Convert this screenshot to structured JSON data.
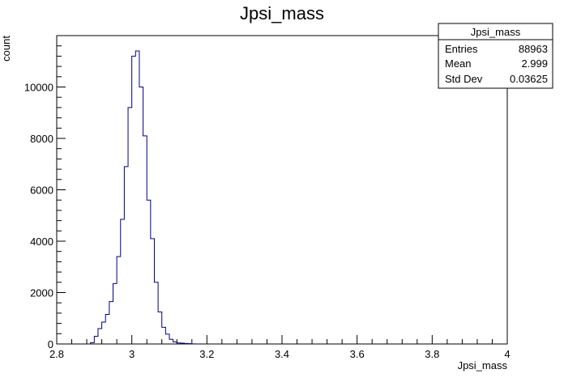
{
  "chart_data": {
    "type": "histogram",
    "title": "Jpsi_mass",
    "xlabel": "Jpsi_mass",
    "ylabel": "count",
    "xlim": [
      2.8,
      4.0
    ],
    "ylim": [
      0,
      12000
    ],
    "x_ticks": [
      "2.8",
      "3",
      "3.2",
      "3.4",
      "3.6",
      "3.8",
      "4"
    ],
    "y_ticks": [
      "0",
      "2000",
      "4000",
      "6000",
      "8000",
      "10000"
    ],
    "bin_width": 0.01,
    "bins_x_low": [
      2.89,
      2.9,
      2.91,
      2.92,
      2.93,
      2.94,
      2.95,
      2.96,
      2.97,
      2.98,
      2.99,
      3.0,
      3.01,
      3.02,
      3.03,
      3.04,
      3.05,
      3.06,
      3.07,
      3.08,
      3.09,
      3.1,
      3.11,
      3.12,
      3.13,
      3.14,
      3.15,
      3.16
    ],
    "bins_count": [
      50,
      300,
      600,
      850,
      1150,
      1650,
      2350,
      3400,
      4850,
      6900,
      9200,
      11200,
      11400,
      10000,
      8100,
      5600,
      4100,
      2400,
      1250,
      650,
      380,
      180,
      80,
      40,
      30,
      20,
      10,
      5
    ],
    "line_color": "#000080",
    "grid": false,
    "legend": "none"
  },
  "stats_box": {
    "title": "Jpsi_mass",
    "rows": [
      {
        "label": "Entries",
        "value": "88963"
      },
      {
        "label": "Mean",
        "value": "2.999"
      },
      {
        "label": "Std Dev",
        "value": "0.03625"
      }
    ]
  }
}
